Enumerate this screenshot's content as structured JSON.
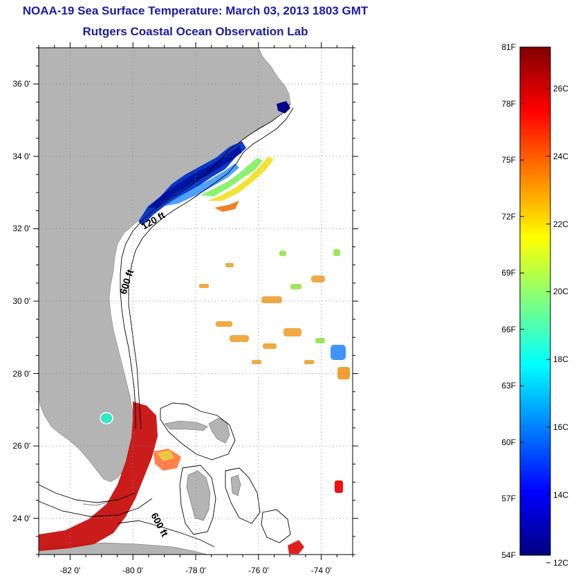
{
  "title": "NOAA-19 Sea Surface Temperature:  March 03, 2013 1803 GMT",
  "subtitle": "Rutgers Coastal Ocean Observation Lab",
  "map": {
    "lon_range": [
      -83,
      -73
    ],
    "lat_range": [
      23,
      37
    ],
    "lon_ticks": [
      "-82 0'",
      "-80 0'",
      "-78 0'",
      "-76 0'",
      "-74 0'"
    ],
    "lat_ticks": [
      "36 0'",
      "34 0'",
      "32 0'",
      "30 0'",
      "28 0'",
      "26 0'",
      "24 0'"
    ],
    "isobath_labels": [
      "120 ft",
      "600 ft",
      "600 ft"
    ],
    "colors": {
      "land": "#b4b4b4",
      "water": "#ffffff",
      "contour": "#000000"
    }
  },
  "colorbar": {
    "range_f": [
      54,
      81
    ],
    "range_c": [
      12,
      27
    ],
    "f_labels": [
      "81F",
      "78F",
      "75F",
      "72F",
      "69F",
      "66F",
      "63F",
      "60F",
      "57F",
      "54F"
    ],
    "c_labels": [
      "26C",
      "24C",
      "22C",
      "20C",
      "18C",
      "16C",
      "14C",
      "12C"
    ],
    "colormap": [
      "#00007f",
      "#0000ff",
      "#007fff",
      "#00ffff",
      "#7fff7f",
      "#ffff00",
      "#ff7f00",
      "#ff0000",
      "#7f0000"
    ]
  }
}
